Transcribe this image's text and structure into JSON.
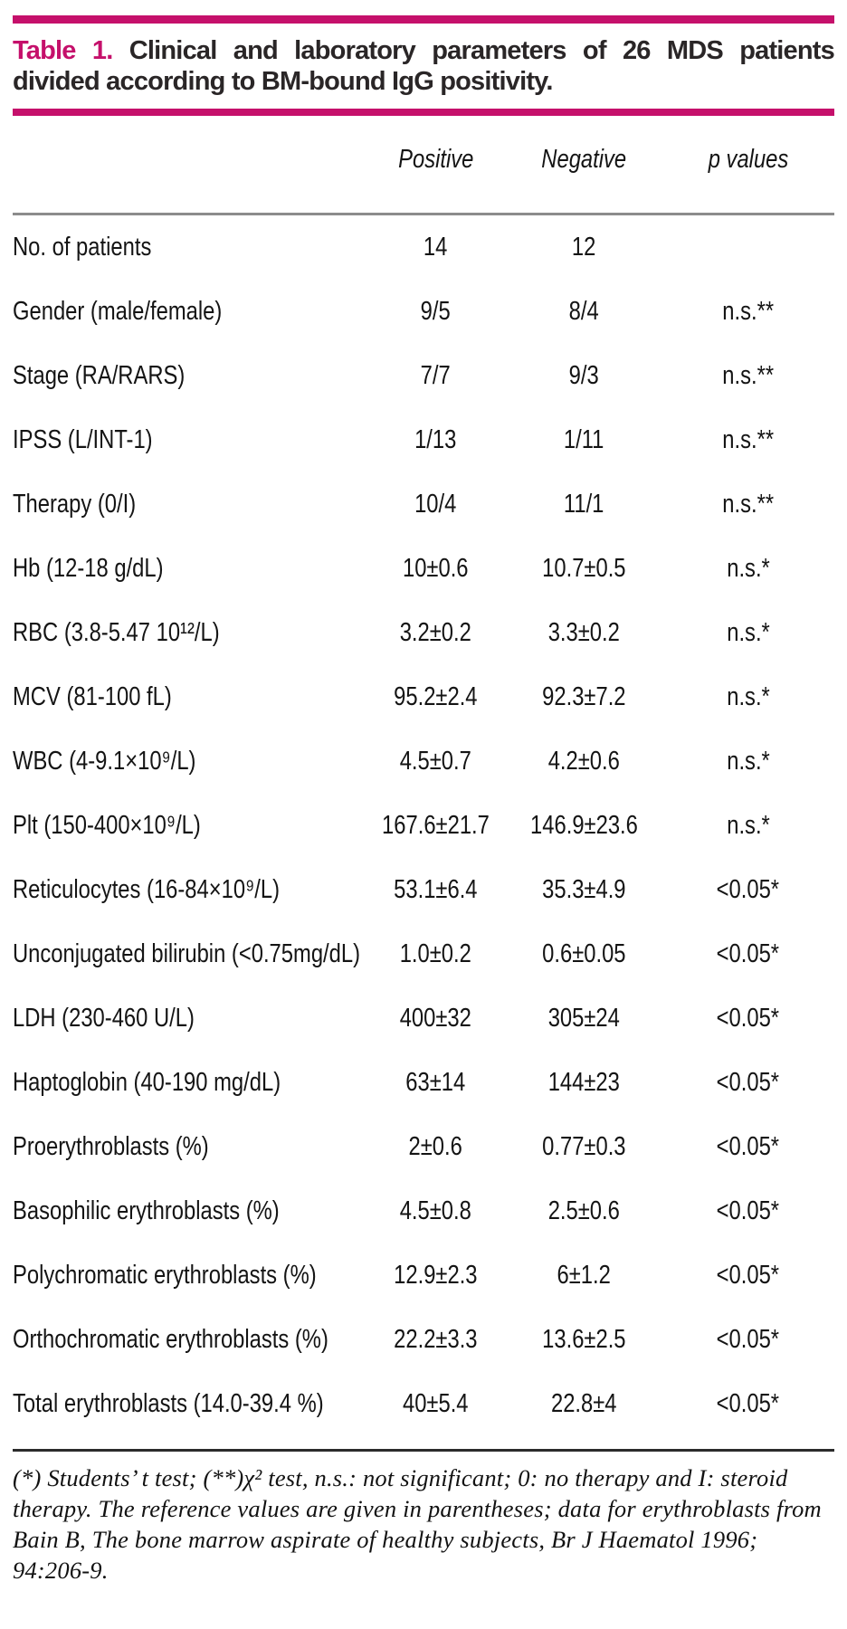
{
  "colors": {
    "accent": "#c5106b",
    "header_rule": "#8c8c8c",
    "footnote_rule": "#2b2b2b"
  },
  "title": {
    "label": "Table 1.",
    "text": "Clinical and laboratory parameters of 26 MDS patients divided according to BM-bound IgG positivity."
  },
  "table": {
    "columns": [
      "Positive",
      "Negative",
      "p values"
    ],
    "rows": [
      {
        "label": "No. of patients",
        "positive": "14",
        "negative": "12",
        "p": ""
      },
      {
        "label": "Gender (male/female)",
        "positive": "9/5",
        "negative": "8/4",
        "p": "n.s.**"
      },
      {
        "label": "Stage (RA/RARS)",
        "positive": "7/7",
        "negative": "9/3",
        "p": "n.s.**"
      },
      {
        "label": "IPSS (L/INT-1)",
        "positive": "1/13",
        "negative": "1/11",
        "p": "n.s.**"
      },
      {
        "label": "Therapy (0/I)",
        "positive": "10/4",
        "negative": "11/1",
        "p": "n.s.**"
      },
      {
        "label": "Hb (12-18 g/dL)",
        "positive": "10±0.6",
        "negative": "10.7±0.5",
        "p": "n.s.*"
      },
      {
        "label": "RBC (3.8-5.47 10¹²/L)",
        "positive": "3.2±0.2",
        "negative": "3.3±0.2",
        "p": "n.s.*"
      },
      {
        "label": "MCV (81-100 fL)",
        "positive": "95.2±2.4",
        "negative": "92.3±7.2",
        "p": "n.s.*"
      },
      {
        "label": "WBC (4-9.1×10⁹/L)",
        "positive": "4.5±0.7",
        "negative": "4.2±0.6",
        "p": "n.s.*"
      },
      {
        "label": "Plt (150-400×10⁹/L)",
        "positive": "167.6±21.7",
        "negative": "146.9±23.6",
        "p": "n.s.*"
      },
      {
        "label": "Reticulocytes (16-84×10⁹/L)",
        "positive": "53.1±6.4",
        "negative": "35.3±4.9",
        "p": "<0.05*"
      },
      {
        "label": "Unconjugated bilirubin (<0.75mg/dL)",
        "positive": "1.0±0.2",
        "negative": "0.6±0.05",
        "p": "<0.05*"
      },
      {
        "label": "LDH (230-460 U/L)",
        "positive": "400±32",
        "negative": "305±24",
        "p": "<0.05*"
      },
      {
        "label": "Haptoglobin (40-190 mg/dL)",
        "positive": "63±14",
        "negative": "144±23",
        "p": "<0.05*"
      },
      {
        "label": "Proerythroblasts (%)",
        "positive": "2±0.6",
        "negative": "0.77±0.3",
        "p": "<0.05*"
      },
      {
        "label": "Basophilic erythroblasts (%)",
        "positive": "4.5±0.8",
        "negative": "2.5±0.6",
        "p": "<0.05*"
      },
      {
        "label": "Polychromatic erythroblasts (%)",
        "positive": "12.9±2.3",
        "negative": "6±1.2",
        "p": "<0.05*"
      },
      {
        "label": "Orthochromatic erythroblasts (%)",
        "positive": "22.2±3.3",
        "negative": "13.6±2.5",
        "p": "<0.05*"
      },
      {
        "label": "Total erythroblasts (14.0-39.4 %)",
        "positive": "40±5.4",
        "negative": "22.8±4",
        "p": "<0.05*"
      }
    ]
  },
  "footnote": "(*) Students’ t test; (**)χ² test, n.s.: not significant; 0: no therapy and I: steroid therapy. The reference values are given in parentheses; data for erythroblasts from Bain B, The bone marrow aspirate of healthy subjects, Br J Haematol 1996; 94:206-9."
}
